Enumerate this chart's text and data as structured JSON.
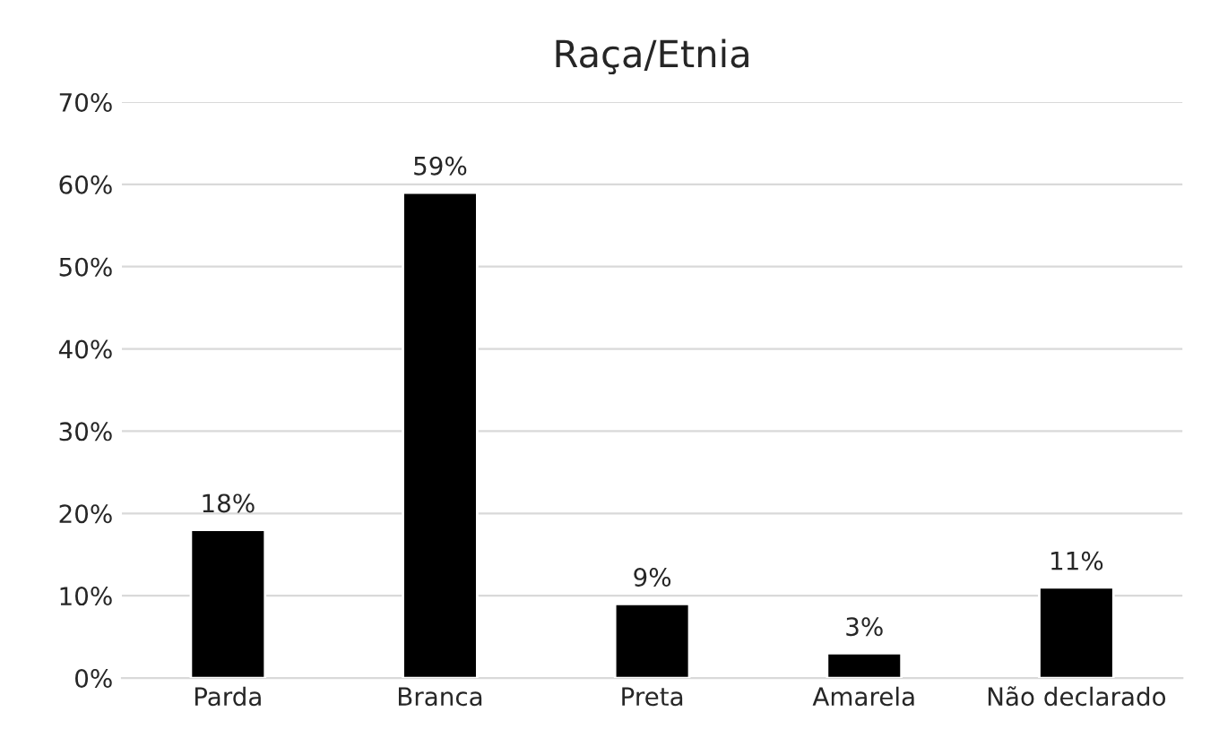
{
  "chart_data": {
    "type": "bar",
    "title": "Raça/Etnia",
    "categories": [
      "Parda",
      "Branca",
      "Preta",
      "Amarela",
      "Não declarado"
    ],
    "values": [
      18,
      59,
      9,
      3,
      11
    ],
    "value_labels": [
      "18%",
      "59%",
      "9%",
      "3%",
      "11%"
    ],
    "color": "#000000",
    "ylim": [
      0,
      70
    ],
    "yticks": [
      {
        "value": 0,
        "label": "0%"
      },
      {
        "value": 10,
        "label": "10%"
      },
      {
        "value": 20,
        "label": "20%"
      },
      {
        "value": 30,
        "label": "30%"
      },
      {
        "value": 40,
        "label": "40%"
      },
      {
        "value": 50,
        "label": "50%"
      },
      {
        "value": 60,
        "label": "60%"
      },
      {
        "value": 70,
        "label": "70%"
      }
    ],
    "grid": "y",
    "legend": false
  }
}
